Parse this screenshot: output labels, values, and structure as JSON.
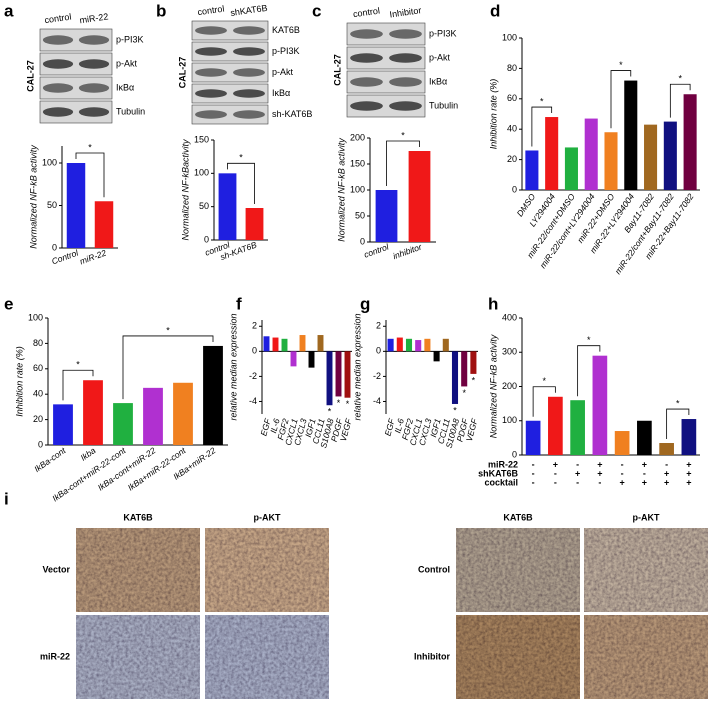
{
  "blots": [
    {
      "label": "a",
      "cell_line": "CAL-27",
      "lanes": [
        "control",
        "miR-22"
      ],
      "bands": [
        "p-PI3K",
        "p-Akt",
        "IκBα",
        "Tubulin"
      ]
    },
    {
      "label": "b",
      "cell_line": "CAL-27",
      "lanes": [
        "control",
        "shKAT6B"
      ],
      "bands": [
        "KAT6B",
        "p-PI3K",
        "p-Akt",
        "IκBα",
        "sh-KAT6B"
      ]
    },
    {
      "label": "c",
      "cell_line": "CAL-27",
      "lanes": [
        "control",
        "Inhibitor"
      ],
      "bands": [
        "p-PI3K",
        "p-Akt",
        "IκBα",
        "Tubulin"
      ]
    }
  ],
  "chart_data": [
    {
      "type": "bar",
      "ylabel": "Normalized NF-kB activity",
      "categories": [
        "Control",
        "miR-22"
      ],
      "values": [
        100,
        55
      ],
      "colors": [
        "#1f1fe0",
        "#f01818"
      ],
      "ylim": [
        0,
        120
      ],
      "yticks": [
        0,
        50,
        100
      ],
      "significance": [
        {
          "text": "*",
          "from": 0,
          "to": 1
        }
      ]
    },
    {
      "type": "bar",
      "ylabel": "Normalized NF-kBactivity",
      "categories": [
        "control",
        "sh-KAT6B"
      ],
      "values": [
        100,
        48
      ],
      "colors": [
        "#1f1fe0",
        "#f01818"
      ],
      "ylim": [
        0,
        150
      ],
      "yticks": [
        0,
        50,
        100,
        150
      ],
      "significance": [
        {
          "text": "*",
          "from": 0,
          "to": 1
        }
      ]
    },
    {
      "type": "bar",
      "ylabel": "Normalized NF-kB activity",
      "categories": [
        "control",
        "inhibitor"
      ],
      "values": [
        100,
        175
      ],
      "colors": [
        "#1f1fe0",
        "#f01818"
      ],
      "ylim": [
        0,
        200
      ],
      "yticks": [
        0,
        50,
        100,
        150,
        200
      ],
      "significance": [
        {
          "text": "*",
          "from": 0,
          "to": 1
        }
      ]
    },
    {
      "type": "bar",
      "label": "d",
      "ylabel": "Inhibition rate (%)",
      "categories": [
        "DMSO",
        "LY294004",
        "miR-22/cont+DMSO",
        "miR-22/cont+LY294004",
        "miR-22+DMSO",
        "miR-22+LY294004",
        "Bay11-7082",
        "miR-22/cont+Bay11-7082",
        "miR-22+Bay11-7082"
      ],
      "values": [
        26,
        48,
        28,
        47,
        38,
        72,
        43,
        45,
        63
      ],
      "colors": [
        "#1f1fe0",
        "#f01818",
        "#20b040",
        "#b030d0",
        "#f08020",
        "#000000",
        "#a06820",
        "#101080",
        "#700040"
      ],
      "ylim": [
        0,
        100
      ],
      "yticks": [
        0,
        20,
        40,
        60,
        80,
        100
      ],
      "significance": [
        {
          "text": "*",
          "from": 0,
          "to": 1
        },
        {
          "text": "*",
          "from": 4,
          "to": 5
        },
        {
          "text": "*",
          "from": 7,
          "to": 8
        }
      ]
    },
    {
      "type": "bar",
      "label": "e",
      "ylabel": "Inhibition rate (%)",
      "categories": [
        "IkBa-cont",
        "Ikba",
        "IkBa-cont+miR-22-cont",
        "IkBa-cont+miR-22",
        "IkBa+miR-22-cont",
        "IkBa+miR-22"
      ],
      "values": [
        32,
        51,
        33,
        45,
        49,
        78
      ],
      "colors": [
        "#1f1fe0",
        "#f01818",
        "#20b040",
        "#b030d0",
        "#f08020",
        "#000000"
      ],
      "ylim": [
        0,
        100
      ],
      "yticks": [
        0,
        20,
        40,
        60,
        80,
        100
      ],
      "significance": [
        {
          "text": "*",
          "from": 0,
          "to": 1
        },
        {
          "text": "*",
          "from": 2,
          "to": 5
        }
      ]
    },
    {
      "type": "bar",
      "label": "f",
      "ylabel": "relative median expression",
      "categories": [
        "EGF",
        "IL-6",
        "FGF2",
        "CXCL1",
        "CXCL3",
        "IGF1",
        "CCL11",
        "S100A8",
        "PDGF",
        "VEGF"
      ],
      "values": [
        1.2,
        1.1,
        1.0,
        -1.2,
        1.3,
        -1.3,
        1.3,
        -4.3,
        -3.6,
        -3.7
      ],
      "colors": [
        "#1f1fe0",
        "#f01818",
        "#20b040",
        "#b030d0",
        "#f08020",
        "#000000",
        "#a06820",
        "#101080",
        "#700040",
        "#a01010"
      ],
      "ylim": [
        -5,
        2.5
      ],
      "yticks": [
        -4,
        -2,
        0,
        2
      ],
      "significance": [
        {
          "text": "*",
          "bar": 7
        },
        {
          "text": "*",
          "bar": 8
        },
        {
          "text": "*",
          "bar": 9
        }
      ]
    },
    {
      "type": "bar",
      "label": "g",
      "ylabel": "relative median expression",
      "categories": [
        "EGF",
        "IL-6",
        "FGF2",
        "CXCL1",
        "CXCL3",
        "IGF1",
        "CCL11",
        "S100A8",
        "PDGF",
        "VEGF"
      ],
      "values": [
        1.0,
        1.1,
        1.0,
        0.9,
        1.0,
        -0.8,
        1.0,
        -4.2,
        -2.8,
        -1.8
      ],
      "colors": [
        "#1f1fe0",
        "#f01818",
        "#20b040",
        "#b030d0",
        "#f08020",
        "#000000",
        "#a06820",
        "#101080",
        "#700040",
        "#a01010"
      ],
      "ylim": [
        -5,
        2.5
      ],
      "yticks": [
        -4,
        -2,
        0,
        2
      ],
      "significance": [
        {
          "text": "*",
          "bar": 7
        },
        {
          "text": "*",
          "bar": 8
        },
        {
          "text": "*",
          "bar": 9
        }
      ]
    },
    {
      "type": "bar",
      "label": "h",
      "ylabel": "Normalized NF-kB activity",
      "categories": [
        null,
        null,
        null,
        null,
        null,
        null,
        null,
        null
      ],
      "values": [
        100,
        170,
        160,
        290,
        70,
        100,
        35,
        105
      ],
      "colors": [
        "#1f1fe0",
        "#f01818",
        "#20b040",
        "#b030d0",
        "#f08020",
        "#000000",
        "#a06820",
        "#101080"
      ],
      "ylim": [
        0,
        400
      ],
      "yticks": [
        0,
        100,
        200,
        300,
        400
      ],
      "significance": [
        {
          "text": "*",
          "from": 0,
          "to": 1
        },
        {
          "text": "*",
          "from": 2,
          "to": 3
        },
        {
          "text": "*",
          "from": 6,
          "to": 7
        }
      ],
      "conditions": [
        {
          "name": "miR-22",
          "signs": [
            "-",
            "+",
            "-",
            "+",
            "-",
            "+",
            "-",
            "+"
          ]
        },
        {
          "name": "shKAT6B",
          "signs": [
            "-",
            "-",
            "+",
            "+",
            "-",
            "-",
            "+",
            "+"
          ]
        },
        {
          "name": "cocktail",
          "signs": [
            "-",
            "-",
            "-",
            "-",
            "+",
            "+",
            "+",
            "+"
          ]
        }
      ]
    }
  ],
  "ihc": {
    "label": "i",
    "groups": [
      {
        "columns": [
          "KAT6B",
          "p-AKT"
        ],
        "rows": [
          "Vector",
          "miR-22"
        ]
      },
      {
        "columns": [
          "KAT6B",
          "p-AKT"
        ],
        "rows": [
          "Control",
          "Inhibitor"
        ]
      }
    ]
  }
}
